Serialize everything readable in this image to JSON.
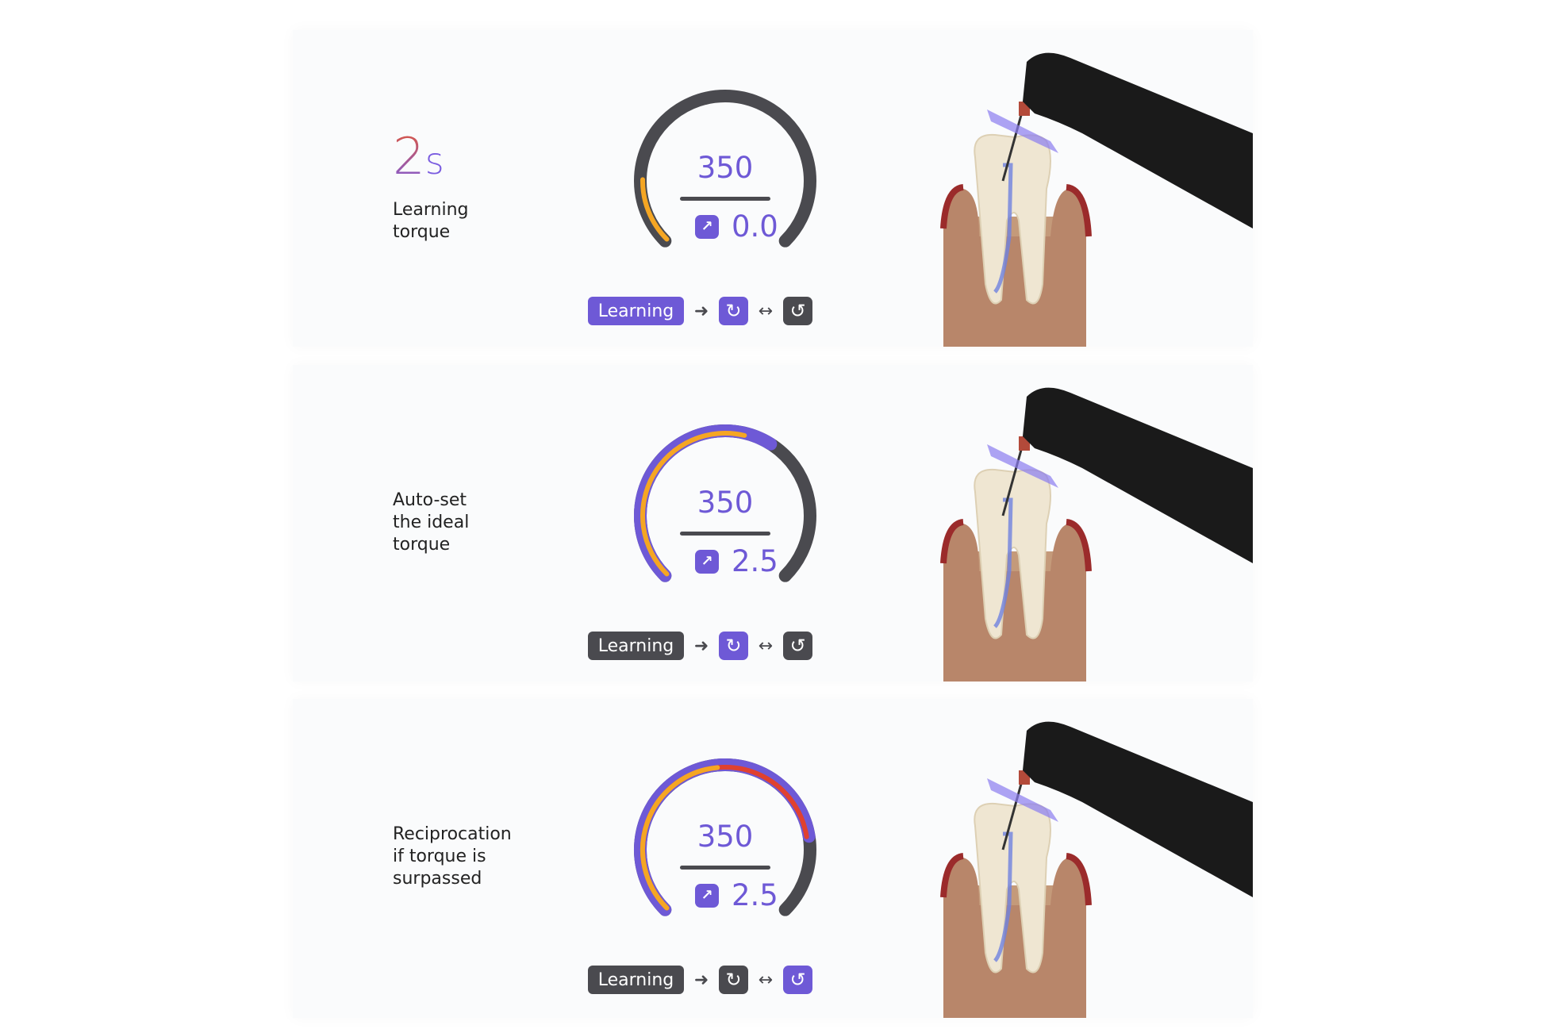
{
  "colors": {
    "accent": "#6e59d6",
    "inactive": "#4a4a4f",
    "track": "#4a4a4f",
    "orange": "#f5a623",
    "red": "#e0412f"
  },
  "icons": {
    "torque": "torque-icon",
    "rotate": "rotate-clockwise-icon",
    "reciprocate": "reciprocate-icon",
    "arrow": "arrow-right-icon",
    "double_arrow": "double-arrow-icon"
  },
  "panels": [
    {
      "timer_value": "2",
      "timer_unit": "s",
      "caption": [
        "Learning",
        "torque"
      ],
      "speed": "350",
      "torque": "0.0",
      "learning_label": "Learning",
      "learning_active": true,
      "rotate_active": true,
      "reciprocate_active": false,
      "outer_fraction": 0,
      "inner_fraction": 0.17,
      "inner_red": false
    },
    {
      "caption": [
        "Auto-set",
        "the ideal",
        "torque"
      ],
      "speed": "350",
      "torque": "2.5",
      "learning_label": "Learning",
      "learning_active": false,
      "rotate_active": true,
      "reciprocate_active": false,
      "outer_fraction": 0.62,
      "inner_fraction": 0.55,
      "inner_red": false
    },
    {
      "caption": [
        "Reciprocation",
        "if torque is",
        "surpassed"
      ],
      "speed": "350",
      "torque": "2.5",
      "learning_label": "Learning",
      "learning_active": false,
      "rotate_active": false,
      "reciprocate_active": true,
      "outer_fraction": 0.8,
      "inner_fraction": 0.8,
      "inner_red": true
    }
  ]
}
